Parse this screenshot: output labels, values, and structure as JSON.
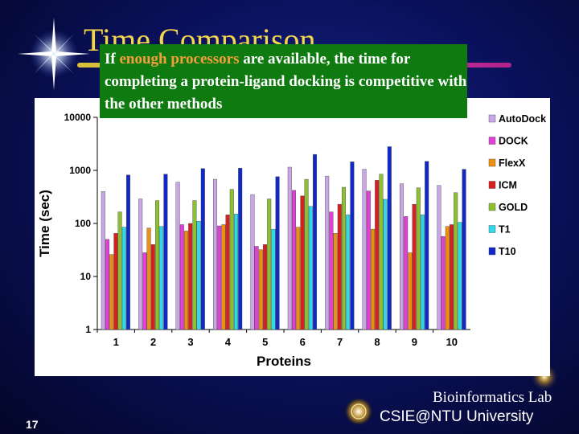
{
  "slide": {
    "title": "Time Comparison",
    "callout": {
      "part1": "If ",
      "highlight": "enough processors",
      "part2": " are available, the time for completing a protein-ligand docking is competitive with the other methods"
    },
    "page_number": "17",
    "lab_line1": "Bioinformatics Lab",
    "lab_line2": "CSIE@NTU University"
  },
  "colors": {
    "title": "#f3d64a",
    "callout_bg": "#0f7a0f",
    "callout_highlight": "#f3a03c"
  },
  "chart_data": {
    "type": "bar",
    "xlabel": "Proteins",
    "ylabel": "Time (sec)",
    "yscale": "log",
    "ylim": [
      1,
      10000
    ],
    "yticks": [
      "1",
      "10",
      "100",
      "1000",
      "10000"
    ],
    "grid": false,
    "legend_position": "right",
    "categories": [
      "1",
      "2",
      "3",
      "4",
      "5",
      "6",
      "7",
      "8",
      "9",
      "10"
    ],
    "series": [
      {
        "name": "AutoDock",
        "color": "#c9a6e6",
        "values": [
          400,
          290,
          600,
          680,
          350,
          1150,
          780,
          1050,
          560,
          520
        ]
      },
      {
        "name": "DOCK",
        "color": "#e040d8",
        "values": [
          50,
          28,
          95,
          90,
          37,
          420,
          165,
          410,
          135,
          57
        ]
      },
      {
        "name": "FlexX",
        "color": "#ef8f10",
        "values": [
          26,
          82,
          72,
          95,
          32,
          85,
          65,
          78,
          28,
          88
        ]
      },
      {
        "name": "ICM",
        "color": "#d82020",
        "values": [
          65,
          40,
          100,
          145,
          40,
          330,
          230,
          650,
          230,
          95
        ]
      },
      {
        "name": "GOLD",
        "color": "#8cc030",
        "values": [
          165,
          270,
          270,
          440,
          290,
          680,
          480,
          850,
          470,
          380
        ]
      },
      {
        "name": "T1",
        "color": "#30d8e8",
        "values": [
          85,
          88,
          110,
          150,
          78,
          210,
          145,
          285,
          145,
          105
        ]
      },
      {
        "name": "T10",
        "color": "#1028c8",
        "values": [
          820,
          850,
          1080,
          1100,
          760,
          2000,
          1450,
          2800,
          1480,
          1050
        ]
      }
    ]
  }
}
